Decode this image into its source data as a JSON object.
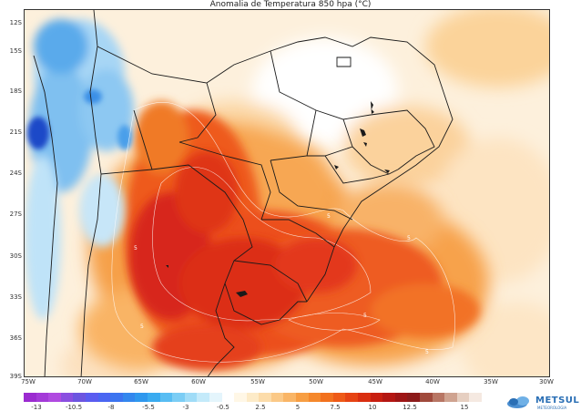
{
  "title": "Anomalia de Temperatura 850 hpa (°C)",
  "lat_labels": [
    "12S",
    "15S",
    "18S",
    "21S",
    "24S",
    "27S",
    "30S",
    "33S",
    "36S",
    "39S"
  ],
  "lon_labels": [
    "75W",
    "70W",
    "65W",
    "60W",
    "55W",
    "50W",
    "45W",
    "40W",
    "35W",
    "30W"
  ],
  "colorbar": {
    "labels": [
      "-13",
      "-10.5",
      "-8",
      "-5.5",
      "-3",
      "-0.5",
      "2.5",
      "5",
      "7.5",
      "10",
      "12.5",
      "15"
    ],
    "colors": [
      "#9b2bd0",
      "#a43ad8",
      "#b04ae0",
      "#8a4fe0",
      "#6c55e0",
      "#5a5cf0",
      "#4a66f2",
      "#3c74f0",
      "#3387ee",
      "#2f98ee",
      "#3aabf0",
      "#58bdf3",
      "#7bcdf5",
      "#a0dcf7",
      "#c4eafa",
      "#e4f5fc",
      "#ffffff",
      "#fff7e6",
      "#fdebc8",
      "#fcdcaa",
      "#fbc987",
      "#f9b566",
      "#f79e43",
      "#f5882c",
      "#f2711e",
      "#ee5a17",
      "#e64313",
      "#d92e10",
      "#c81e10",
      "#b41612",
      "#9e1515",
      "#8c1a1a",
      "#a04a3c",
      "#b87664",
      "#cfa390",
      "#e6cfc1",
      "#f5e9e1"
    ]
  },
  "contour_labels": [
    "5",
    "5",
    "5",
    "5",
    "5",
    "5",
    "5",
    "5",
    "5"
  ],
  "brand": {
    "name": "METSUL",
    "sub": "METEOROLOGIA"
  },
  "colors": {
    "warm_max": "#d7261a",
    "warm_mid": "#f07a28",
    "warm_low": "#fbd7a6",
    "cold": "#3a8fe6",
    "cold_max": "#1a49c8"
  }
}
